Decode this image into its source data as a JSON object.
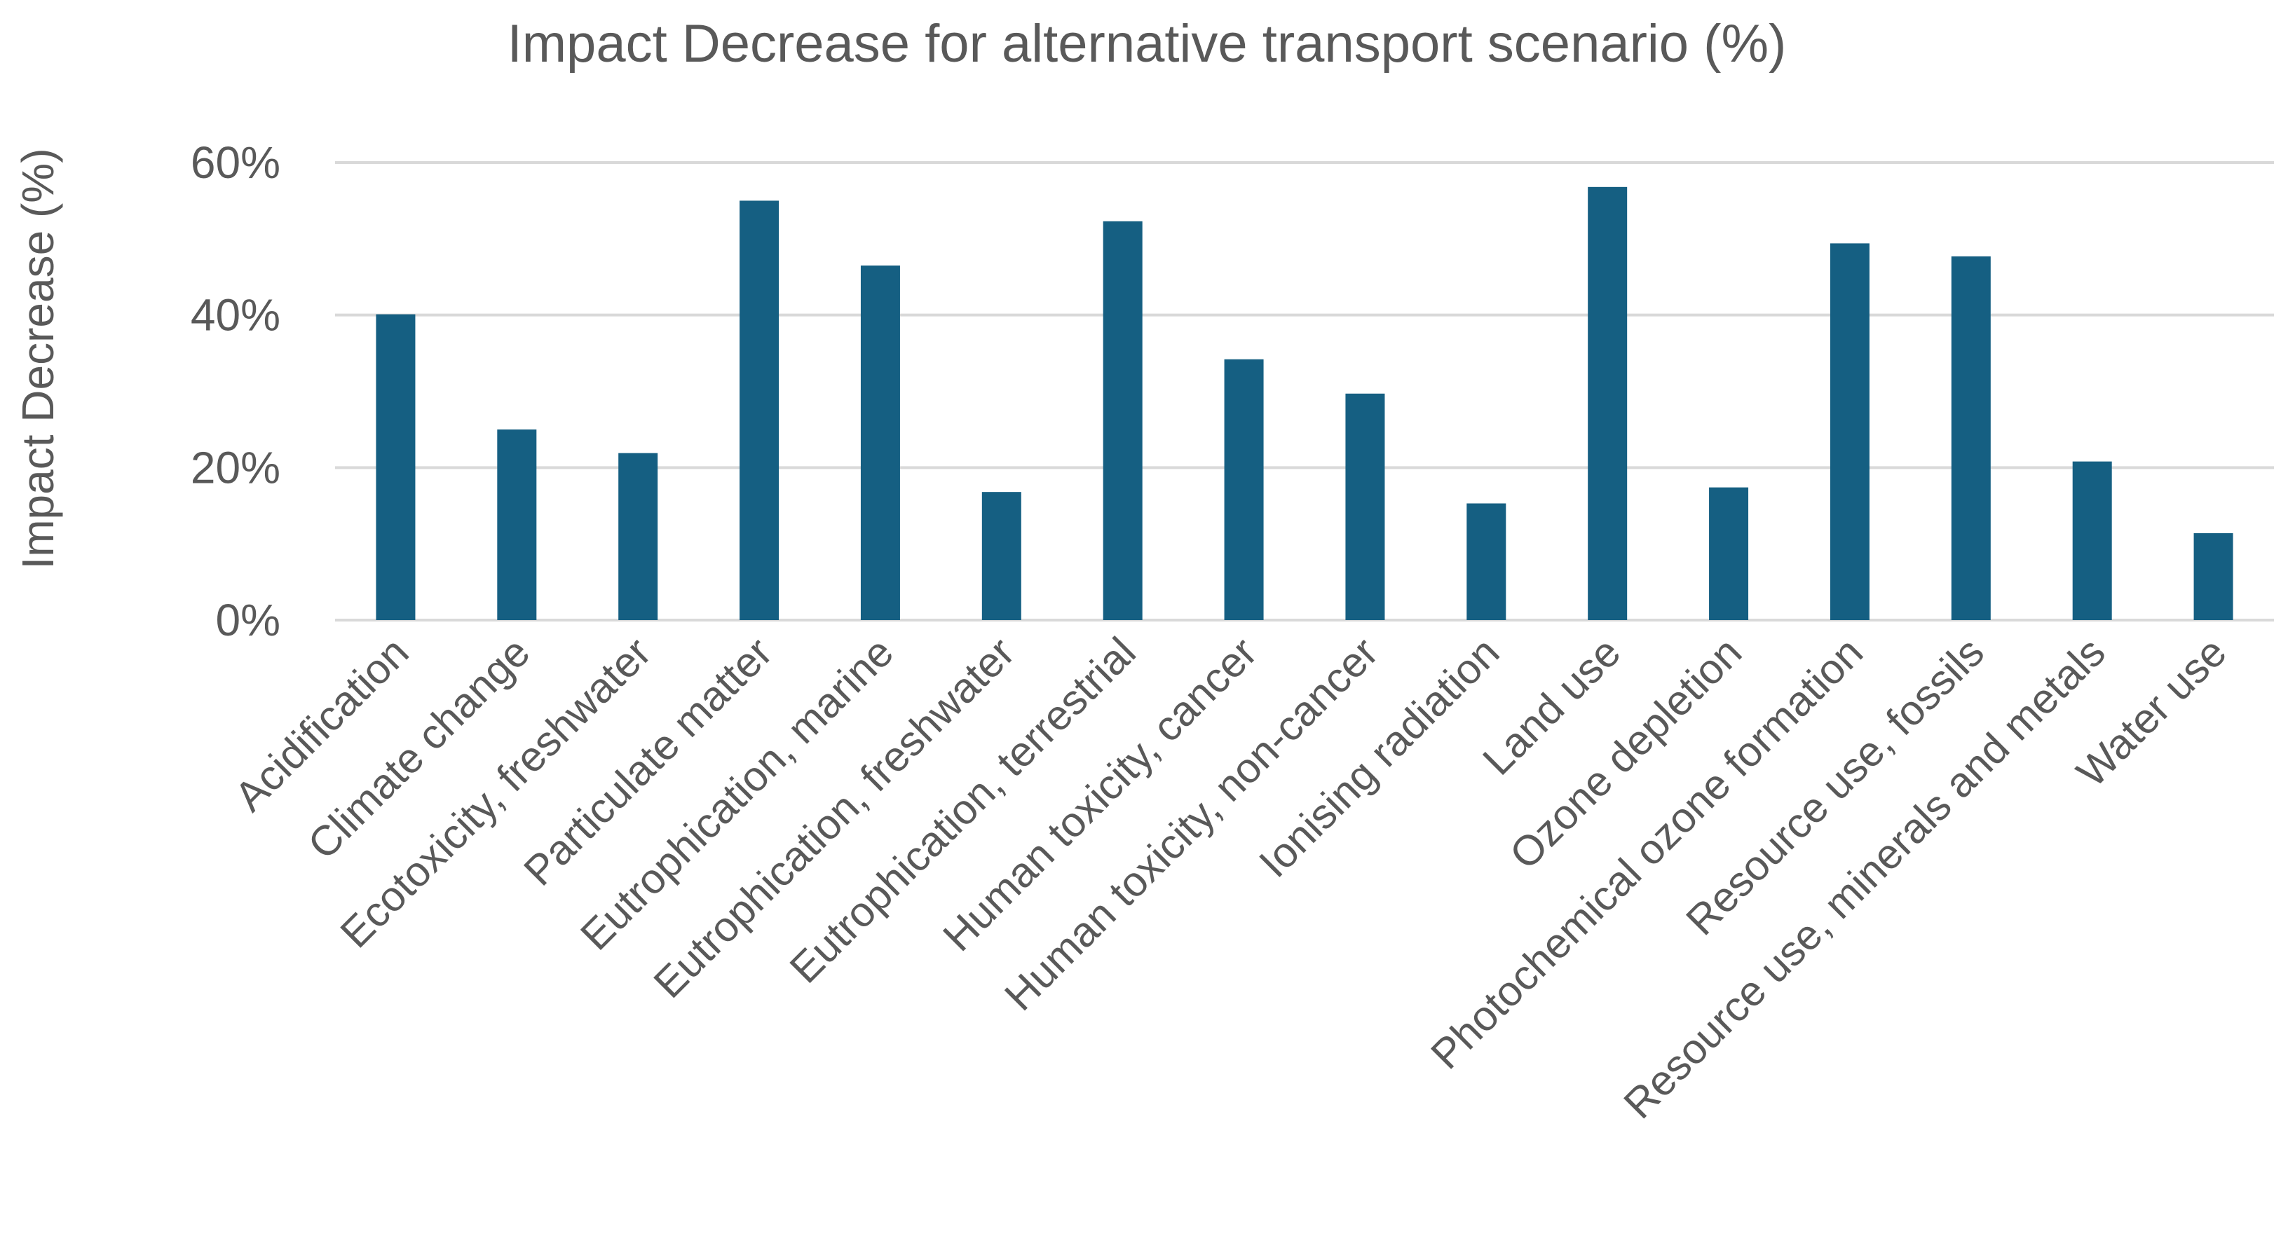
{
  "chart_data": {
    "type": "bar",
    "title": "Impact Decrease for alternative transport scenario (%)",
    "xlabel": "",
    "ylabel": "Impact Decrease (%)",
    "ylim": [
      0,
      60
    ],
    "yticks": [
      0,
      20,
      40,
      60
    ],
    "ytick_labels": [
      "0%",
      "20%",
      "40%",
      "60%"
    ],
    "grid": true,
    "legend": "none",
    "bar_color": "#155f82",
    "categories": [
      "Acidification",
      "Climate change",
      "Ecotoxicity, freshwater",
      "Particulate matter",
      "Eutrophication, marine",
      "Eutrophication, freshwater",
      "Eutrophication, terrestrial",
      "Human toxicity, cancer",
      "Human toxicity, non-cancer",
      "Ionising radiation",
      "Land use",
      "Ozone depletion",
      "Photochemical ozone formation",
      "Resource use, fossils",
      "Resource use, minerals and metals",
      "Water use"
    ],
    "values": [
      40.1,
      25.0,
      21.9,
      55.0,
      46.5,
      16.8,
      52.3,
      34.2,
      29.7,
      15.3,
      56.8,
      17.4,
      49.4,
      47.7,
      20.8,
      11.4
    ]
  }
}
